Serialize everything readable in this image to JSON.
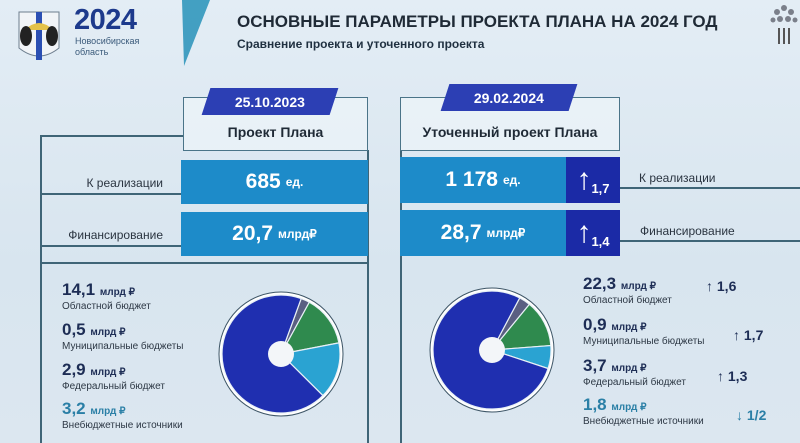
{
  "header": {
    "year": "2024",
    "region": "Новосибирская область",
    "title": "ОСНОВНЫЕ ПАРАМЕТРЫ ПРОЕКТА ПЛАНА НА 2024 ГОД",
    "subtitle": "Сравнение проекта и уточенного проекта"
  },
  "colors": {
    "bar": "#1d8bc9",
    "dark_blue": "#1b2aa6",
    "regional": "#1f2fb0",
    "municipal": "#5a5f82",
    "federal": "#2f8a4e",
    "off_budget": "#2aa3d2"
  },
  "left": {
    "date": "25.10.2023",
    "heading": "Проект Плана",
    "realization": {
      "label": "К реализации",
      "value": "685",
      "unit": "ед."
    },
    "financing": {
      "label": "Финансирование",
      "value": "20,7",
      "unit": "млрд₽"
    },
    "sources": [
      {
        "value": "14,1",
        "unit": "млрд ₽",
        "label": "Областной бюджет"
      },
      {
        "value": "0,5",
        "unit": "млрд ₽",
        "label": "Муниципальные бюджеты"
      },
      {
        "value": "2,9",
        "unit": "млрд ₽",
        "label": "Федеральный бюджет"
      },
      {
        "value": "3,2",
        "unit": "млрд ₽",
        "label": "Внебюджетные источники"
      }
    ]
  },
  "right": {
    "date": "29.02.2024",
    "heading": "Уточенный проект Плана",
    "realization": {
      "label": "К реализации",
      "value": "1 178",
      "unit": "ед.",
      "change": "1,7",
      "arrow": "up"
    },
    "financing": {
      "label": "Финансирование",
      "value": "28,7",
      "unit": "млрд₽",
      "change": "1,4",
      "arrow": "up"
    },
    "sources": [
      {
        "value": "22,3",
        "unit": "млрд ₽",
        "label": "Областной бюджет",
        "change": "1,6",
        "arrow": "up"
      },
      {
        "value": "0,9",
        "unit": "млрд ₽",
        "label": "Муниципальные бюджеты",
        "change": "1,7",
        "arrow": "up"
      },
      {
        "value": "3,7",
        "unit": "млрд ₽",
        "label": "Федеральный бюджет",
        "change": "1,3",
        "arrow": "up"
      },
      {
        "value": "1,8",
        "unit": "млрд ₽",
        "label": "Внебюджетные источники",
        "change": "1/2",
        "arrow": "down"
      }
    ]
  },
  "chart_data": [
    {
      "type": "pie",
      "categories": [
        "Областной бюджет",
        "Муниципальные бюджеты",
        "Федеральный бюджет",
        "Внебюджетные источники"
      ],
      "values": [
        14.1,
        0.5,
        2.9,
        3.2
      ]
    },
    {
      "type": "pie",
      "categories": [
        "Областной бюджет",
        "Муниципальные бюджеты",
        "Федеральный бюджет",
        "Внебюджетные источники"
      ],
      "values": [
        22.3,
        0.9,
        3.7,
        1.8
      ]
    }
  ]
}
